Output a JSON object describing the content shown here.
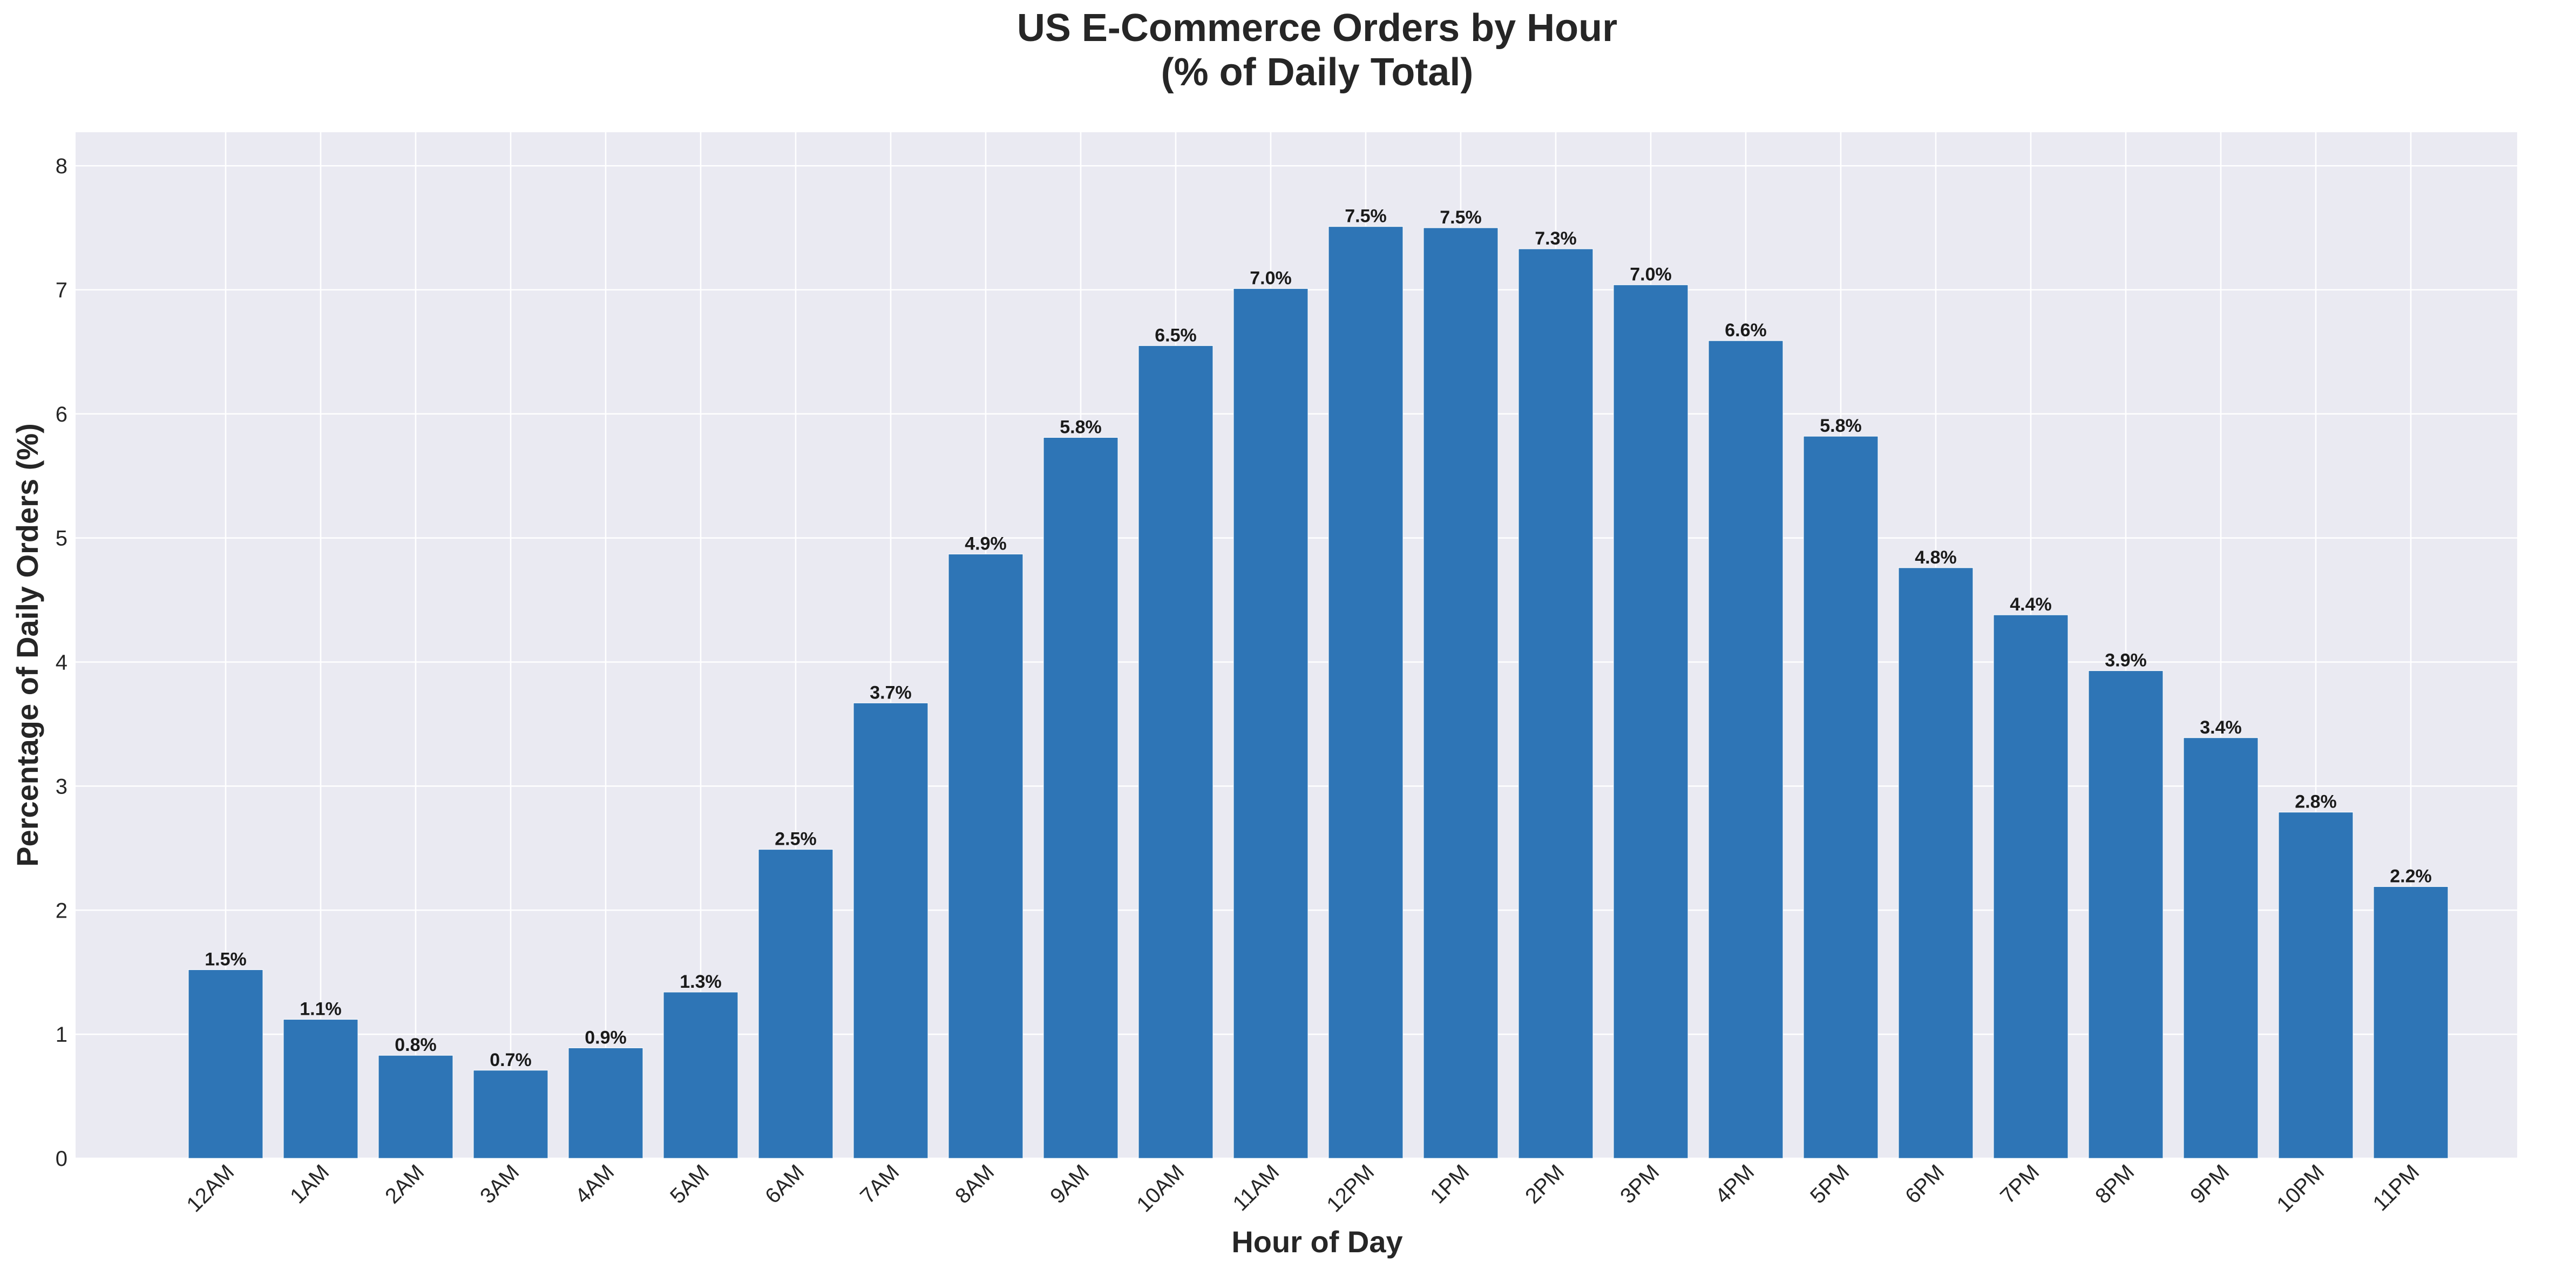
{
  "chart_data": {
    "type": "bar",
    "title": "US E-Commerce Orders by Hour",
    "subtitle": "(% of Daily Total)",
    "xlabel": "Hour of Day",
    "ylabel": "Percentage of Daily Orders (%)",
    "categories": [
      "12AM",
      "1AM",
      "2AM",
      "3AM",
      "4AM",
      "5AM",
      "6AM",
      "7AM",
      "8AM",
      "9AM",
      "10AM",
      "11AM",
      "12PM",
      "1PM",
      "2PM",
      "3PM",
      "4PM",
      "5PM",
      "6PM",
      "7PM",
      "8PM",
      "9PM",
      "10PM",
      "11PM"
    ],
    "values": [
      1.52,
      1.12,
      0.83,
      0.71,
      0.89,
      1.34,
      2.49,
      3.67,
      4.87,
      5.81,
      6.55,
      7.01,
      7.51,
      7.5,
      7.33,
      7.04,
      6.59,
      5.82,
      4.76,
      4.38,
      3.93,
      3.39,
      2.79,
      2.19
    ],
    "data_labels": [
      "1.5%",
      "1.1%",
      "0.8%",
      "0.7%",
      "0.9%",
      "1.3%",
      "2.5%",
      "3.7%",
      "4.9%",
      "5.8%",
      "6.5%",
      "7.0%",
      "7.5%",
      "7.5%",
      "7.3%",
      "7.0%",
      "6.6%",
      "5.8%",
      "4.8%",
      "4.4%",
      "3.9%",
      "3.4%",
      "2.8%",
      "2.2%"
    ],
    "ylim": [
      0,
      8.27
    ],
    "yticks": [
      "0",
      "1",
      "2",
      "3",
      "4",
      "5",
      "6",
      "7",
      "8"
    ],
    "grid": true,
    "bar_color": "#2e75b6",
    "plot_background": "#eaeaf2"
  }
}
